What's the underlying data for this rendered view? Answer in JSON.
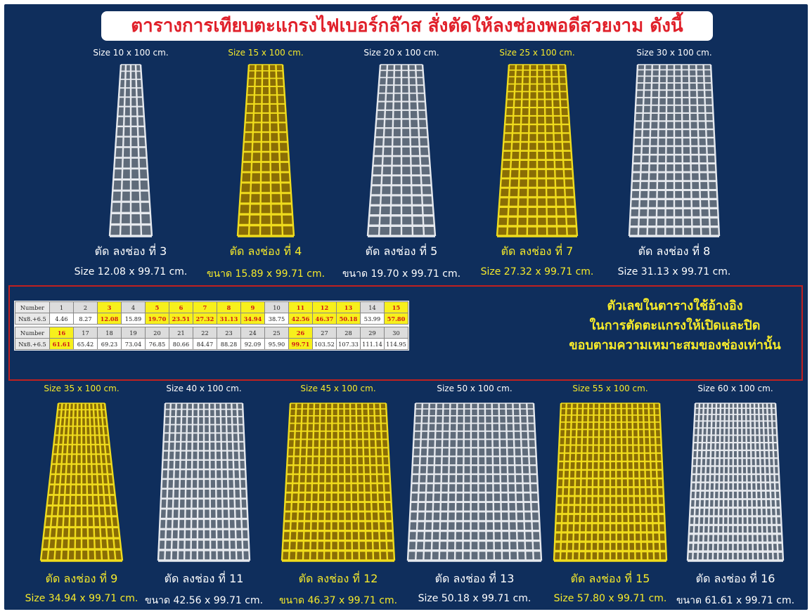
{
  "title": "ตารางการเทียบตะแกรงไฟเบอร์กล๊าส สั่งตัดให้ลงช่องพอดีสวยงาม ดังนี้",
  "top_row": [
    {
      "size": "Size 10 x 100 cm.",
      "cut": "ตัด ลงช่อง ที่ 3",
      "dim": "Size 12.08 x 99.71 cm.",
      "grate_color": "white",
      "label_color": "white",
      "dim_color": "white"
    },
    {
      "size": "Size 15 x 100 cm.",
      "cut": "ตัด ลงช่อง ที่ 4",
      "dim": "ขนาด 15.89 x 99.71 cm.",
      "grate_color": "yellow",
      "label_color": "yellow",
      "dim_color": "yellow"
    },
    {
      "size": "Size 20 x 100 cm.",
      "cut": "ตัด ลงช่อง ที่ 5",
      "dim": "ขนาด 19.70 x 99.71 cm.",
      "grate_color": "white",
      "label_color": "white",
      "dim_color": "white"
    },
    {
      "size": "Size 25 x 100 cm.",
      "cut": "ตัด ลงช่อง ที่ 7",
      "dim": "Size 27.32 x 99.71 cm.",
      "grate_color": "yellow",
      "label_color": "yellow",
      "dim_color": "yellow"
    },
    {
      "size": "Size 30 x 100 cm.",
      "cut": "ตัด ลงช่อง ที่ 8",
      "dim": "Size 31.13 x 99.71 cm.",
      "grate_color": "white",
      "label_color": "white",
      "dim_color": "white"
    }
  ],
  "bottom_row": [
    {
      "size": "Size 35 x 100 cm.",
      "cut": "ตัด ลงช่อง ที่ 9",
      "dim": "Size 34.94 x 99.71 cm.",
      "grate_color": "yellow",
      "label_color": "yellow",
      "dim_color": "yellow"
    },
    {
      "size": "Size 40 x 100 cm.",
      "cut": "ตัด ลงช่อง ที่ 11",
      "dim": "ขนาด 42.56 x 99.71 cm.",
      "grate_color": "white",
      "label_color": "white",
      "dim_color": "white"
    },
    {
      "size": "Size 45 x 100 cm.",
      "cut": "ตัด ลงช่อง ที่ 12",
      "dim": "ขนาด 46.37 x 99.71 cm.",
      "grate_color": "yellow",
      "label_color": "yellow",
      "dim_color": "yellow"
    },
    {
      "size": "Size 50 x 100 cm.",
      "cut": "ตัด ลงช่อง ที่ 13",
      "dim": "Size 50.18 x 99.71 cm.",
      "grate_color": "white",
      "label_color": "white",
      "dim_color": "white"
    },
    {
      "size": "Size 55 x 100 cm.",
      "cut": "ตัด ลงช่อง ที่ 15",
      "dim": "Size 57.80 x 99.71 cm.",
      "grate_color": "yellow",
      "label_color": "yellow",
      "dim_color": "yellow"
    },
    {
      "size": "Size 60 x 100 cm.",
      "cut": "ตัด ลงช่อง ที่ 16",
      "dim": "ขนาด 61.61 x 99.71 cm.",
      "grate_color": "white",
      "label_color": "white",
      "dim_color": "white"
    }
  ],
  "table": {
    "row_header": "Number",
    "value_header": "Nx8.+6.5",
    "groups": [
      {
        "numbers": [
          "1",
          "2",
          "3",
          "4",
          "5",
          "6",
          "7",
          "8",
          "9",
          "10",
          "11",
          "12",
          "13",
          "14",
          "15"
        ],
        "values": [
          "4.46",
          "8.27",
          "12.08",
          "15.89",
          "19.70",
          "23.51",
          "27.32",
          "31.13",
          "34.94",
          "38.75",
          "42.56",
          "46.37",
          "50.18",
          "53.99",
          "57.80"
        ],
        "highlight": [
          3,
          5,
          6,
          7,
          8,
          9,
          11,
          12,
          13,
          15
        ]
      },
      {
        "numbers": [
          "16",
          "17",
          "18",
          "19",
          "20",
          "21",
          "22",
          "23",
          "24",
          "25",
          "26",
          "27",
          "28",
          "29",
          "30"
        ],
        "values": [
          "61.61",
          "65.42",
          "69.23",
          "73.04",
          "76.85",
          "80.66",
          "84.47",
          "88.28",
          "92.09",
          "95.90",
          "99.71",
          "103.52",
          "107.33",
          "111.14",
          "114.95"
        ],
        "highlight": [
          16,
          26
        ]
      }
    ]
  },
  "note": [
    "ตัวเลขในตารางใช้อ้างอิง",
    "ในการตัดตะแกรงให้เปิดและปิด",
    "ขอบตามความเหมาะสมของช่องเท่านั้น"
  ],
  "colors": {
    "background": "#0f2e5c",
    "title_text": "#e0202a",
    "accent_yellow": "#f6ea2a",
    "grate_yellow": "#f0dc1c",
    "grate_white": "#e6e9ee",
    "highlight_cell": "#f7f01c",
    "border_red": "#c02020"
  }
}
